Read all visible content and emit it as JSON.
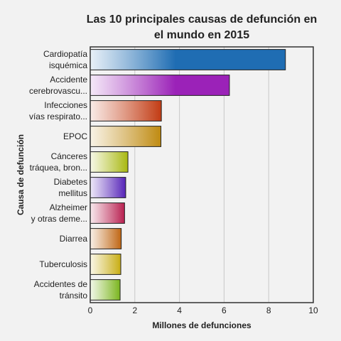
{
  "chart_data": {
    "type": "bar",
    "orientation": "horizontal",
    "title_lines": [
      "Las 10 principales causas de defunción en",
      "el mundo en 2015"
    ],
    "xlabel": "Millones de defunciones",
    "ylabel": "Causa de defunción",
    "xlim": [
      0,
      10
    ],
    "xticks": [
      "0",
      "2",
      "4",
      "6",
      "8",
      "10"
    ],
    "grid": true,
    "categories": [
      [
        "Cardiopatía",
        "isquémica"
      ],
      [
        "Accidente",
        "cerebrovascu..."
      ],
      [
        "Infecciones",
        "vías respirato..."
      ],
      [
        "EPOC"
      ],
      [
        "Cánceres",
        "tráquea, bron..."
      ],
      [
        "Diabetes",
        "mellitus"
      ],
      [
        "Alzheimer",
        "y otras deme..."
      ],
      [
        "Diarrea"
      ],
      [
        "Tuberculosis"
      ],
      [
        "Accidentes de",
        "tránsito"
      ]
    ],
    "values": [
      8.75,
      6.24,
      3.19,
      3.17,
      1.69,
      1.59,
      1.54,
      1.39,
      1.37,
      1.34
    ],
    "colors": [
      "#1f6db3",
      "#9b22b8",
      "#c23b13",
      "#bf8a10",
      "#a8b80f",
      "#5523b8",
      "#b81f4f",
      "#bf6512",
      "#c8ad12",
      "#7ab51d"
    ]
  }
}
